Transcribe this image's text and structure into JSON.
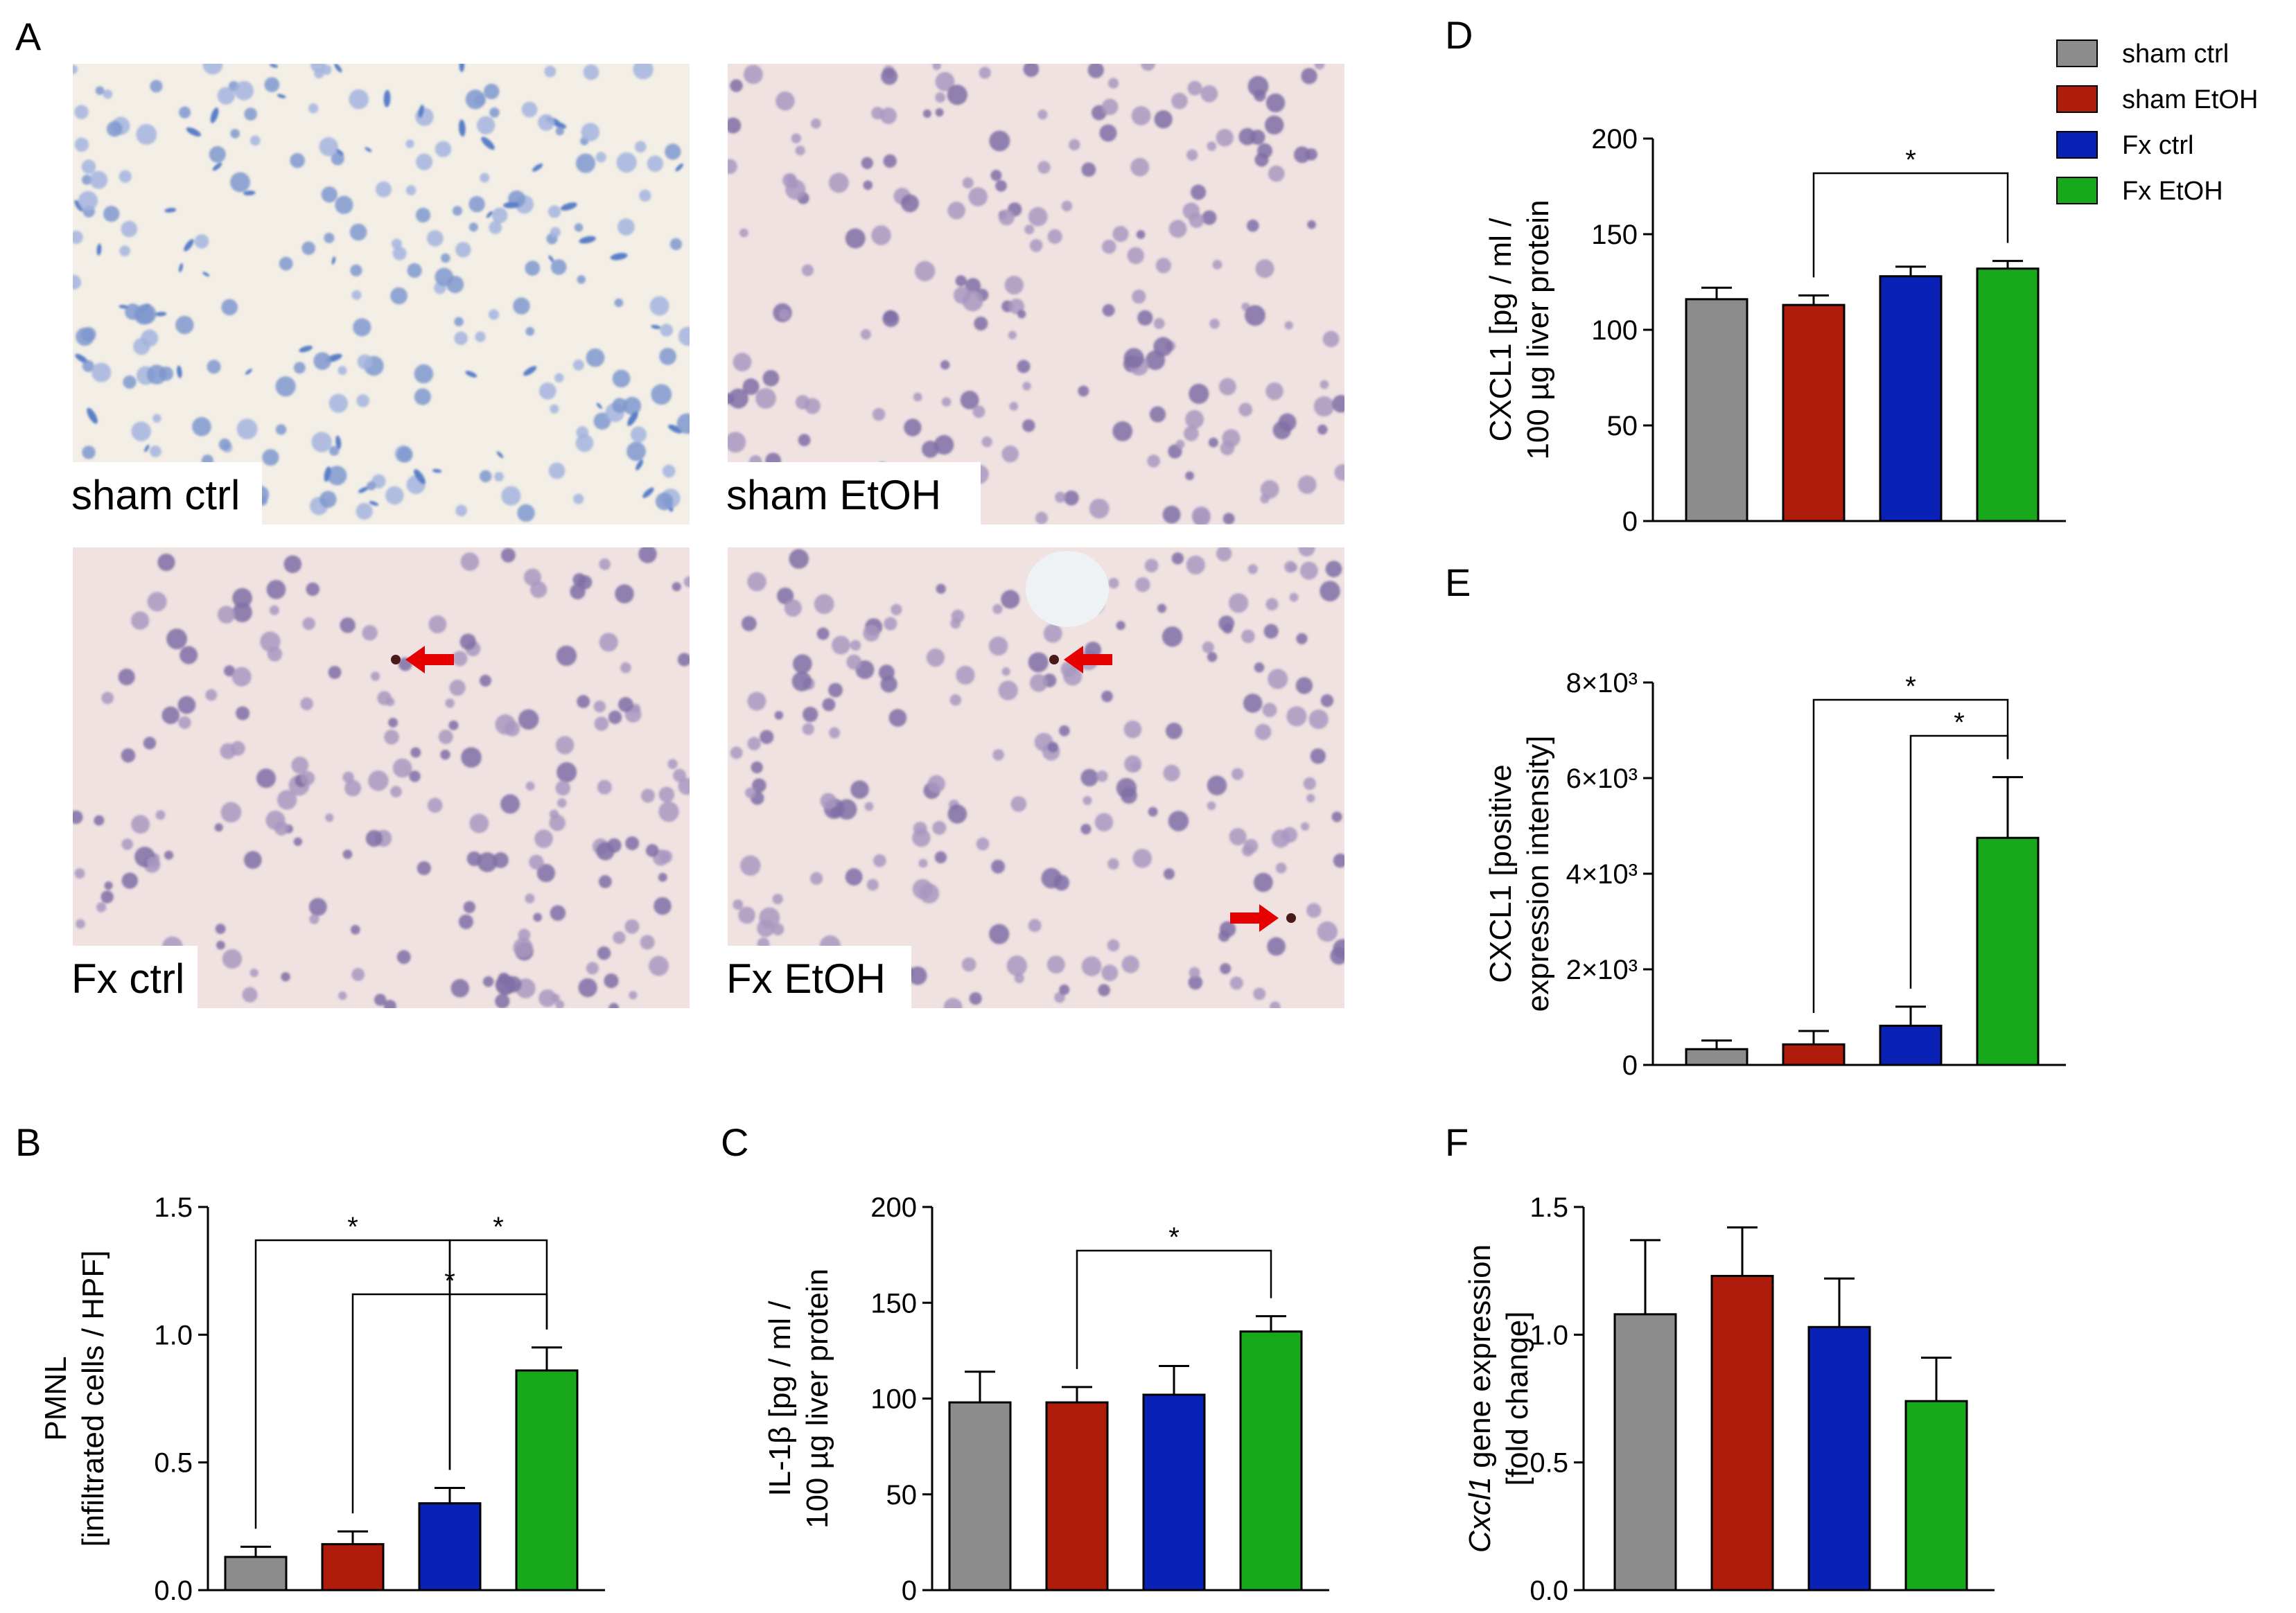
{
  "colors": {
    "sham_ctrl": "#8c8c8c",
    "sham_EtOH": "#b01c0c",
    "Fx_ctrl": "#0a21b5",
    "Fx_EtOH": "#18a81c",
    "arrow": "#e60000"
  },
  "legend": [
    "sham ctrl",
    "sham EtOH",
    "Fx ctrl",
    "Fx EtOH"
  ],
  "panel_A": {
    "letter": "A",
    "images": [
      {
        "label": "sham ctrl",
        "stain": "blue",
        "arrows": []
      },
      {
        "label": "sham EtOH",
        "stain": "pink",
        "arrows": []
      },
      {
        "label": "Fx ctrl",
        "stain": "pink",
        "arrows": [
          "left"
        ]
      },
      {
        "label": "Fx EtOH",
        "stain": "pink",
        "arrows": [
          "left",
          "right"
        ]
      }
    ]
  },
  "chart_data": [
    {
      "panel": "D",
      "type": "bar",
      "categories": [
        "sham ctrl",
        "sham EtOH",
        "Fx ctrl",
        "Fx EtOH"
      ],
      "values": [
        116,
        113,
        128,
        132
      ],
      "errors": [
        6,
        5,
        5,
        4
      ],
      "ylabel": [
        "CXCL1 [pg / ml /",
        "100 µg liver protein"
      ],
      "ylim": [
        0,
        200
      ],
      "yticks": [
        "0",
        "50",
        "100",
        "150",
        "200"
      ],
      "significance": [
        {
          "from": 1,
          "to": 3,
          "label": "*"
        }
      ]
    },
    {
      "panel": "E",
      "type": "bar",
      "categories": [
        "sham ctrl",
        "sham EtOH",
        "Fx ctrl",
        "Fx EtOH"
      ],
      "values": [
        330,
        430,
        820,
        4750
      ],
      "errors": [
        180,
        280,
        400,
        1270
      ],
      "ylabel": [
        "CXCL1 [positive",
        "expression intensity]"
      ],
      "ylim": [
        0,
        8000
      ],
      "yticks": [
        "0",
        "2×10³",
        "4×10³",
        "6×10³",
        "8×10³"
      ],
      "significance": [
        {
          "from": 1,
          "to": 3,
          "label": "*"
        },
        {
          "from": 2,
          "to": 3,
          "label": "*"
        }
      ]
    },
    {
      "panel": "B",
      "type": "bar",
      "categories": [
        "sham ctrl",
        "sham EtOH",
        "Fx ctrl",
        "Fx EtOH"
      ],
      "values": [
        0.13,
        0.18,
        0.34,
        0.86
      ],
      "errors": [
        0.04,
        0.05,
        0.06,
        0.09
      ],
      "ylabel": [
        "PMNL",
        "[infiltrated cells / HPF]"
      ],
      "ylim": [
        0,
        1.5
      ],
      "yticks": [
        "0.0",
        "0.5",
        "1.0",
        "1.5"
      ],
      "significance": [
        {
          "from": 0,
          "to": 2,
          "label": "*"
        },
        {
          "from": 2,
          "to": 3,
          "label": "*"
        },
        {
          "from": 1,
          "to": 3,
          "label": "*"
        }
      ]
    },
    {
      "panel": "C",
      "type": "bar",
      "categories": [
        "sham ctrl",
        "sham EtOH",
        "Fx ctrl",
        "Fx EtOH"
      ],
      "values": [
        98,
        98,
        102,
        135
      ],
      "errors": [
        16,
        8,
        15,
        8
      ],
      "ylabel": [
        "IL-1β [pg / ml /",
        "100 µg liver protein"
      ],
      "ylim": [
        0,
        200
      ],
      "yticks": [
        "0",
        "50",
        "100",
        "150",
        "200"
      ],
      "significance": [
        {
          "from": 1,
          "to": 3,
          "label": "*"
        }
      ]
    },
    {
      "panel": "F",
      "type": "bar",
      "categories": [
        "sham ctrl",
        "sham EtOH",
        "Fx ctrl",
        "Fx EtOH"
      ],
      "values": [
        1.08,
        1.23,
        1.03,
        0.74
      ],
      "errors": [
        0.29,
        0.19,
        0.19,
        0.17
      ],
      "ylabel": [
        "Cxcl1 gene expression",
        "[fold change]"
      ],
      "ylabel_italic_prefix": "Cxcl1",
      "ylim": [
        0,
        1.5
      ],
      "yticks": [
        "0.0",
        "0.5",
        "1.0",
        "1.5"
      ],
      "significance": []
    }
  ]
}
